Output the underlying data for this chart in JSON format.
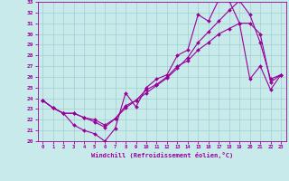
{
  "xlabel": "Windchill (Refroidissement éolien,°C)",
  "line_color": "#990099",
  "bg_color": "#c8eaea",
  "grid_color": "#a0d0d0",
  "xlim": [
    -0.5,
    23.5
  ],
  "ylim": [
    20,
    33
  ],
  "xticks": [
    0,
    1,
    2,
    3,
    4,
    5,
    6,
    7,
    8,
    9,
    10,
    11,
    12,
    13,
    14,
    15,
    16,
    17,
    18,
    19,
    20,
    21,
    22,
    23
  ],
  "yticks": [
    20,
    21,
    22,
    23,
    24,
    25,
    26,
    27,
    28,
    29,
    30,
    31,
    32,
    33
  ],
  "line1_x": [
    0,
    1,
    2,
    3,
    4,
    5,
    6,
    7,
    8,
    9,
    10,
    11,
    12,
    13,
    14,
    15,
    16,
    17,
    18,
    19,
    20,
    21,
    22,
    23
  ],
  "line1_y": [
    23.8,
    23.1,
    22.6,
    21.5,
    21.0,
    20.7,
    20.0,
    21.2,
    24.5,
    23.2,
    25.0,
    25.8,
    26.2,
    28.0,
    28.5,
    31.8,
    31.2,
    33.2,
    33.1,
    31.0,
    25.8,
    27.0,
    24.8,
    26.2
  ],
  "line2_x": [
    0,
    1,
    2,
    3,
    4,
    5,
    6,
    7,
    8,
    9,
    10,
    11,
    12,
    13,
    14,
    15,
    16,
    17,
    18,
    19,
    20,
    21,
    22,
    23
  ],
  "line2_y": [
    23.8,
    23.1,
    22.6,
    22.6,
    22.2,
    21.8,
    21.3,
    22.1,
    23.3,
    23.8,
    24.5,
    25.2,
    25.9,
    26.8,
    27.8,
    29.2,
    30.2,
    31.2,
    32.2,
    33.1,
    31.8,
    29.2,
    25.8,
    26.2
  ],
  "line3_x": [
    0,
    1,
    2,
    3,
    4,
    5,
    6,
    7,
    8,
    9,
    10,
    11,
    12,
    13,
    14,
    15,
    16,
    17,
    18,
    19,
    20,
    21,
    22,
    23
  ],
  "line3_y": [
    23.8,
    23.1,
    22.6,
    22.6,
    22.2,
    22.0,
    21.5,
    22.1,
    23.1,
    23.8,
    24.8,
    25.3,
    26.0,
    27.0,
    27.5,
    28.5,
    29.2,
    30.0,
    30.5,
    31.0,
    31.0,
    30.0,
    25.5,
    26.2
  ]
}
